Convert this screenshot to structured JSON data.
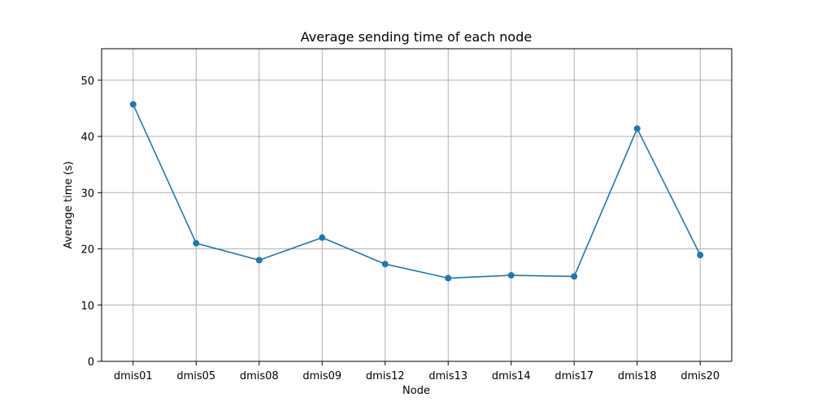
{
  "chart_data": {
    "type": "line",
    "title": "Average sending time of each node",
    "xlabel": "Node",
    "ylabel": "Average time (s)",
    "categories": [
      "dmis01",
      "dmis05",
      "dmis08",
      "dmis09",
      "dmis12",
      "dmis13",
      "dmis14",
      "dmis17",
      "dmis18",
      "dmis20"
    ],
    "series": [
      {
        "values": [
          45.7,
          21.0,
          18.0,
          22.0,
          17.3,
          14.8,
          15.3,
          15.1,
          41.4,
          18.9
        ],
        "color": "#1f77b4",
        "markers": true
      }
    ],
    "ylim": [
      0,
      55.6
    ],
    "yticks": [
      0,
      10,
      20,
      30,
      40,
      50
    ],
    "grid": true
  }
}
